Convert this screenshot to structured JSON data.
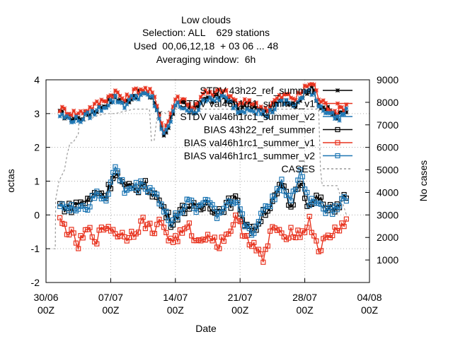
{
  "chart_data": {
    "type": "line",
    "title_lines": [
      "Low clouds",
      "Selection: ALL    629 stations",
      "Used  00,06,12,18  + 03 06 ... 48",
      "Averaging window:  6h"
    ],
    "xlabel": "Date",
    "ylabel": "octas",
    "y2label": "No cases",
    "ylim": [
      -2,
      4
    ],
    "y2lim": [
      0,
      9000
    ],
    "xlim": [
      "2008-06-30 00Z",
      "2008-08-04 00Z"
    ],
    "x_ticks": [
      {
        "date": "30/06",
        "hour": "00Z"
      },
      {
        "date": "07/07",
        "hour": "00Z"
      },
      {
        "date": "14/07",
        "hour": "00Z"
      },
      {
        "date": "21/07",
        "hour": "00Z"
      },
      {
        "date": "28/07",
        "hour": "00Z"
      },
      {
        "date": "04/08",
        "hour": "00Z"
      }
    ],
    "y_ticks": [
      "-2",
      "-1",
      "0",
      "1",
      "2",
      "3",
      "4"
    ],
    "y2_ticks": [
      "1000",
      "2000",
      "3000",
      "4000",
      "5000",
      "6000",
      "7000",
      "8000",
      "9000"
    ],
    "grid": true,
    "legend_position": "top-right",
    "series": [
      {
        "name": "STDV 43h22_ref_summer",
        "color": "#000000",
        "axis": "y",
        "marker": "star",
        "anchors_x": [
          1.5,
          2.5,
          3.5,
          5,
          6.5,
          7.5,
          8.5,
          9.5,
          10.5,
          11.5,
          12.2,
          12.7,
          13.2,
          14,
          15,
          16,
          17,
          18,
          19,
          20,
          21,
          22,
          23,
          24,
          25,
          26,
          27,
          28,
          28.5,
          29,
          29.5,
          30.5,
          31.5,
          32.5
        ],
        "anchors_y": [
          3.0,
          2.9,
          2.85,
          3.05,
          3.3,
          3.5,
          3.3,
          3.55,
          3.6,
          3.5,
          3.0,
          2.35,
          2.6,
          3.3,
          3.25,
          3.0,
          3.5,
          3.4,
          3.55,
          3.35,
          3.1,
          3.25,
          3.1,
          3.0,
          3.3,
          3.4,
          3.3,
          3.6,
          3.75,
          3.65,
          3.3,
          3.1,
          2.9,
          3.1
        ]
      },
      {
        "name": "STDV val46h1rc1_summer_v1",
        "color": "#e8331f",
        "axis": "y",
        "marker": "star",
        "anchors_x": [
          1.5,
          2.5,
          3.5,
          5,
          6.5,
          7.5,
          8.5,
          9.5,
          10.5,
          11.5,
          12.2,
          12.7,
          13.2,
          14,
          15,
          16,
          17,
          18,
          19,
          20,
          21,
          22,
          23,
          24,
          25,
          26,
          27,
          28,
          28.5,
          29,
          29.5,
          30.5,
          31.5,
          32.5
        ],
        "anchors_y": [
          3.15,
          3.05,
          3.0,
          3.2,
          3.45,
          3.65,
          3.4,
          3.65,
          3.75,
          3.6,
          3.1,
          2.5,
          2.75,
          3.45,
          3.4,
          3.15,
          3.65,
          3.55,
          3.7,
          3.5,
          3.25,
          3.4,
          3.2,
          3.15,
          3.45,
          3.55,
          3.45,
          3.75,
          3.9,
          3.85,
          3.45,
          3.2,
          3.05,
          3.25
        ]
      },
      {
        "name": "STDV val46h1rc1_summer_v2",
        "color": "#1f77b4",
        "axis": "y",
        "marker": "star",
        "anchors_x": [
          1.5,
          2.5,
          3.5,
          5,
          6.5,
          7.5,
          8.5,
          9.5,
          10.5,
          11.5,
          12.2,
          12.7,
          13.2,
          14,
          15,
          16,
          17,
          18,
          19,
          20,
          21,
          22,
          23,
          24,
          25,
          26,
          27,
          28,
          28.5,
          29,
          29.5,
          30.5,
          31.5,
          32.5
        ],
        "anchors_y": [
          2.95,
          2.85,
          2.8,
          3.0,
          3.25,
          3.45,
          3.25,
          3.5,
          3.55,
          3.45,
          2.95,
          2.3,
          2.55,
          3.25,
          3.2,
          2.95,
          3.45,
          3.35,
          3.5,
          3.3,
          3.05,
          3.2,
          3.05,
          2.95,
          3.25,
          3.35,
          3.25,
          3.55,
          3.7,
          3.6,
          3.25,
          3.05,
          2.85,
          3.05
        ]
      },
      {
        "name": "BIAS 43h22_ref_summer",
        "color": "#000000",
        "axis": "y",
        "marker": "square",
        "anchors_x": [
          1.5,
          2.5,
          3.5,
          4.5,
          5.5,
          6.5,
          7.5,
          8.5,
          9.5,
          10.5,
          11.5,
          12.5,
          13.5,
          14.5,
          15.5,
          16.5,
          17.5,
          18.5,
          19.5,
          20.5,
          21.5,
          22.5,
          23.5,
          24.5,
          25.5,
          26.5,
          27.5,
          28.5,
          29.5,
          30.5,
          31.5,
          32.5
        ],
        "anchors_y": [
          0.3,
          0.2,
          0.35,
          0.4,
          0.7,
          0.6,
          1.3,
          0.8,
          0.75,
          0.9,
          0.7,
          0.3,
          -0.2,
          0.1,
          0.3,
          0.1,
          0.4,
          0.1,
          0.3,
          0.45,
          -0.2,
          -0.5,
          0.1,
          0.3,
          0.9,
          0.2,
          1.1,
          0.2,
          0.5,
          0.1,
          0.3,
          0.55
        ]
      },
      {
        "name": "BIAS val46h1rc1_summer_v1",
        "color": "#e8331f",
        "axis": "y",
        "marker": "square",
        "anchors_x": [
          1.5,
          2.5,
          3.5,
          4.5,
          5.5,
          6.5,
          7.5,
          8.5,
          9.5,
          10.5,
          11.5,
          12.5,
          13.5,
          14.5,
          15.5,
          16.5,
          17.5,
          18.5,
          19.5,
          20.5,
          21.5,
          22.5,
          23.5,
          24.5,
          25.5,
          26.5,
          27.5,
          28.5,
          29.5,
          30.5,
          31.5,
          32.5
        ],
        "anchors_y": [
          -0.2,
          -0.5,
          -0.9,
          -0.45,
          -0.7,
          -0.3,
          -0.5,
          -0.65,
          -0.5,
          -0.2,
          -0.45,
          -0.2,
          -0.8,
          -0.6,
          -0.4,
          -0.85,
          -0.5,
          -0.9,
          -0.6,
          -0.15,
          -0.55,
          -0.9,
          -1.4,
          -0.3,
          -0.7,
          -0.45,
          -0.6,
          -0.2,
          -1.0,
          -0.7,
          -0.4,
          -0.2
        ]
      },
      {
        "name": "BIAS val46h1rc1_summer_v2",
        "color": "#1f77b4",
        "axis": "y",
        "marker": "square",
        "anchors_x": [
          1.5,
          2.5,
          3.5,
          4.5,
          5.5,
          6.5,
          7.5,
          8.5,
          9.5,
          10.5,
          11.5,
          12.5,
          13.5,
          14.5,
          15.5,
          16.5,
          17.5,
          18.5,
          19.5,
          20.5,
          21.5,
          22.5,
          23.5,
          24.5,
          25.5,
          26.5,
          27.5,
          28.5,
          29.5,
          30.5,
          31.5,
          32.5
        ],
        "anchors_y": [
          0.4,
          0.1,
          0.3,
          0.2,
          0.6,
          0.5,
          1.4,
          0.75,
          0.8,
          0.9,
          0.75,
          0.35,
          -0.3,
          0.15,
          0.35,
          0.2,
          0.55,
          0.0,
          0.3,
          0.55,
          -0.3,
          -0.55,
          0.2,
          0.4,
          1.05,
          0.3,
          1.3,
          0.4,
          0.45,
          0.05,
          0.3,
          0.55
        ]
      },
      {
        "name": "CASES",
        "color": "#999999",
        "axis": "y2",
        "marker": "none",
        "dashed": true,
        "x": [
          0.8,
          1.0,
          1.05,
          1.4,
          2.0,
          2.3,
          2.6,
          2.9,
          3.2,
          3.5,
          3.55,
          4.5,
          5.5,
          6.5,
          7.5,
          8.5,
          9.5,
          10.5,
          11.2,
          11.4,
          11.7,
          12.0,
          12.5,
          13.0,
          13.5,
          14.5,
          15.5,
          16.5,
          17.5,
          18.5,
          19.5,
          20.5,
          21.5,
          22.5,
          23.5,
          24.5,
          25.5,
          26.5,
          27.5,
          28.5,
          29.5,
          29.7,
          29.9,
          30.5,
          31.5,
          32.5
        ],
        "y": [
          1500,
          1500,
          3700,
          4500,
          5000,
          5700,
          6200,
          6200,
          6400,
          6600,
          7100,
          7200,
          7400,
          7500,
          7500,
          7600,
          7700,
          7700,
          7700,
          6300,
          6300,
          7300,
          7600,
          7500,
          7700,
          7700,
          7700,
          7700,
          7700,
          7700,
          7700,
          7700,
          7700,
          7700,
          7700,
          7700,
          7700,
          7700,
          7700,
          7700,
          7700,
          5000,
          4300,
          4300,
          4300,
          3000
        ]
      }
    ]
  }
}
